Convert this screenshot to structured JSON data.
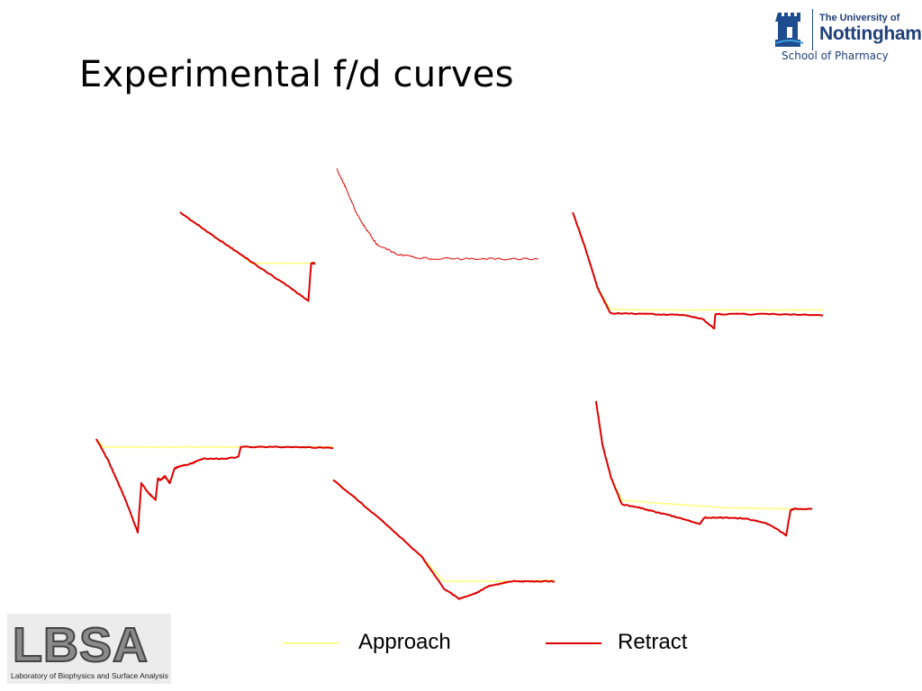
{
  "slide": {
    "title": "Experimental f/d curves"
  },
  "university_logo": {
    "line1": "The University of",
    "line2": "Nottingham",
    "school": "School of Pharmacy",
    "color": "#1f3f7a"
  },
  "lbsa_logo": {
    "letters": "LBSA",
    "caption": "Laboratory of Biophysics and Surface Analysis"
  },
  "colors": {
    "approach": "#ffff80",
    "retract": "#dd0000"
  },
  "chart_data": [
    {
      "type": "line",
      "panel": "top-left",
      "series": [
        {
          "name": "Approach",
          "x": [
            0,
            0.2,
            0.4,
            0.53,
            0.7,
            0.9,
            1.0
          ],
          "y": [
            1.0,
            0.74,
            0.49,
            0.31,
            0.31,
            0.31,
            0.31
          ]
        },
        {
          "name": "Retract",
          "x": [
            0,
            0.2,
            0.4,
            0.6,
            0.8,
            0.95,
            0.97,
            0.975,
            1.0
          ],
          "y": [
            1.0,
            0.74,
            0.49,
            0.24,
            -0.0,
            -0.2,
            0.3,
            0.31,
            0.31
          ]
        }
      ]
    },
    {
      "type": "line",
      "panel": "top-center",
      "series": [
        {
          "name": "Retract",
          "x": [
            0,
            0.05,
            0.1,
            0.15,
            0.2,
            0.3,
            0.4,
            0.6,
            0.8,
            1.0
          ],
          "y": [
            1.0,
            0.78,
            0.52,
            0.35,
            0.2,
            0.1,
            0.06,
            0.05,
            0.05,
            0.05
          ]
        }
      ]
    },
    {
      "type": "line",
      "panel": "top-right",
      "series": [
        {
          "name": "Approach",
          "x": [
            0,
            0.05,
            0.1,
            0.15,
            0.3,
            0.6,
            0.8,
            1.0
          ],
          "y": [
            1.0,
            0.65,
            0.25,
            0.04,
            0.03,
            0.03,
            0.03,
            0.03
          ]
        },
        {
          "name": "Retract",
          "x": [
            0,
            0.05,
            0.1,
            0.15,
            0.3,
            0.45,
            0.52,
            0.565,
            0.57,
            0.6,
            0.8,
            1.0
          ],
          "y": [
            1.0,
            0.65,
            0.25,
            0.0,
            -0.01,
            -0.02,
            -0.06,
            -0.15,
            -0.01,
            -0.01,
            -0.01,
            -0.02
          ]
        }
      ]
    },
    {
      "type": "line",
      "panel": "bottom-left",
      "series": [
        {
          "name": "Approach",
          "x": [
            0,
            0.03,
            0.2,
            0.5,
            0.8,
            1.0
          ],
          "y": [
            1.0,
            0.92,
            0.92,
            0.92,
            0.92,
            0.92
          ]
        },
        {
          "name": "Retract",
          "x": [
            0,
            0.05,
            0.12,
            0.175,
            0.19,
            0.22,
            0.25,
            0.26,
            0.27,
            0.29,
            0.31,
            0.33,
            0.35,
            0.4,
            0.45,
            0.55,
            0.6,
            0.61,
            0.8,
            1.0
          ],
          "y": [
            1.0,
            0.78,
            0.4,
            0.05,
            0.55,
            0.45,
            0.38,
            0.6,
            0.58,
            0.62,
            0.55,
            0.7,
            0.72,
            0.75,
            0.8,
            0.8,
            0.82,
            0.92,
            0.92,
            0.91
          ]
        }
      ]
    },
    {
      "type": "line",
      "panel": "bottom-center",
      "series": [
        {
          "name": "Approach",
          "x": [
            0,
            0.2,
            0.4,
            0.5,
            0.6,
            0.8,
            1.0
          ],
          "y": [
            1.0,
            0.7,
            0.38,
            0.18,
            0.18,
            0.18,
            0.19
          ]
        },
        {
          "name": "Retract",
          "x": [
            0,
            0.2,
            0.4,
            0.5,
            0.57,
            0.65,
            0.7,
            0.75,
            0.8,
            0.9,
            1.0
          ],
          "y": [
            1.0,
            0.7,
            0.38,
            0.12,
            0.04,
            0.09,
            0.14,
            0.16,
            0.18,
            0.18,
            0.18
          ]
        }
      ]
    },
    {
      "type": "line",
      "panel": "bottom-right",
      "series": [
        {
          "name": "Approach",
          "x": [
            0,
            0.03,
            0.07,
            0.12,
            0.3,
            0.6,
            0.9,
            1.0
          ],
          "y": [
            1.0,
            0.6,
            0.3,
            0.1,
            0.07,
            0.03,
            0.02,
            0.02
          ]
        },
        {
          "name": "Retract",
          "x": [
            0,
            0.03,
            0.07,
            0.12,
            0.2,
            0.3,
            0.42,
            0.48,
            0.5,
            0.6,
            0.7,
            0.8,
            0.88,
            0.9,
            0.92,
            1.0
          ],
          "y": [
            1.0,
            0.6,
            0.3,
            0.06,
            0.03,
            -0.02,
            -0.08,
            -0.12,
            -0.06,
            -0.06,
            -0.07,
            -0.12,
            -0.22,
            0.01,
            0.02,
            0.02
          ]
        }
      ]
    }
  ],
  "legend": [
    {
      "label": "Approach",
      "series": "Approach"
    },
    {
      "label": "Retract",
      "series": "Retract"
    }
  ]
}
